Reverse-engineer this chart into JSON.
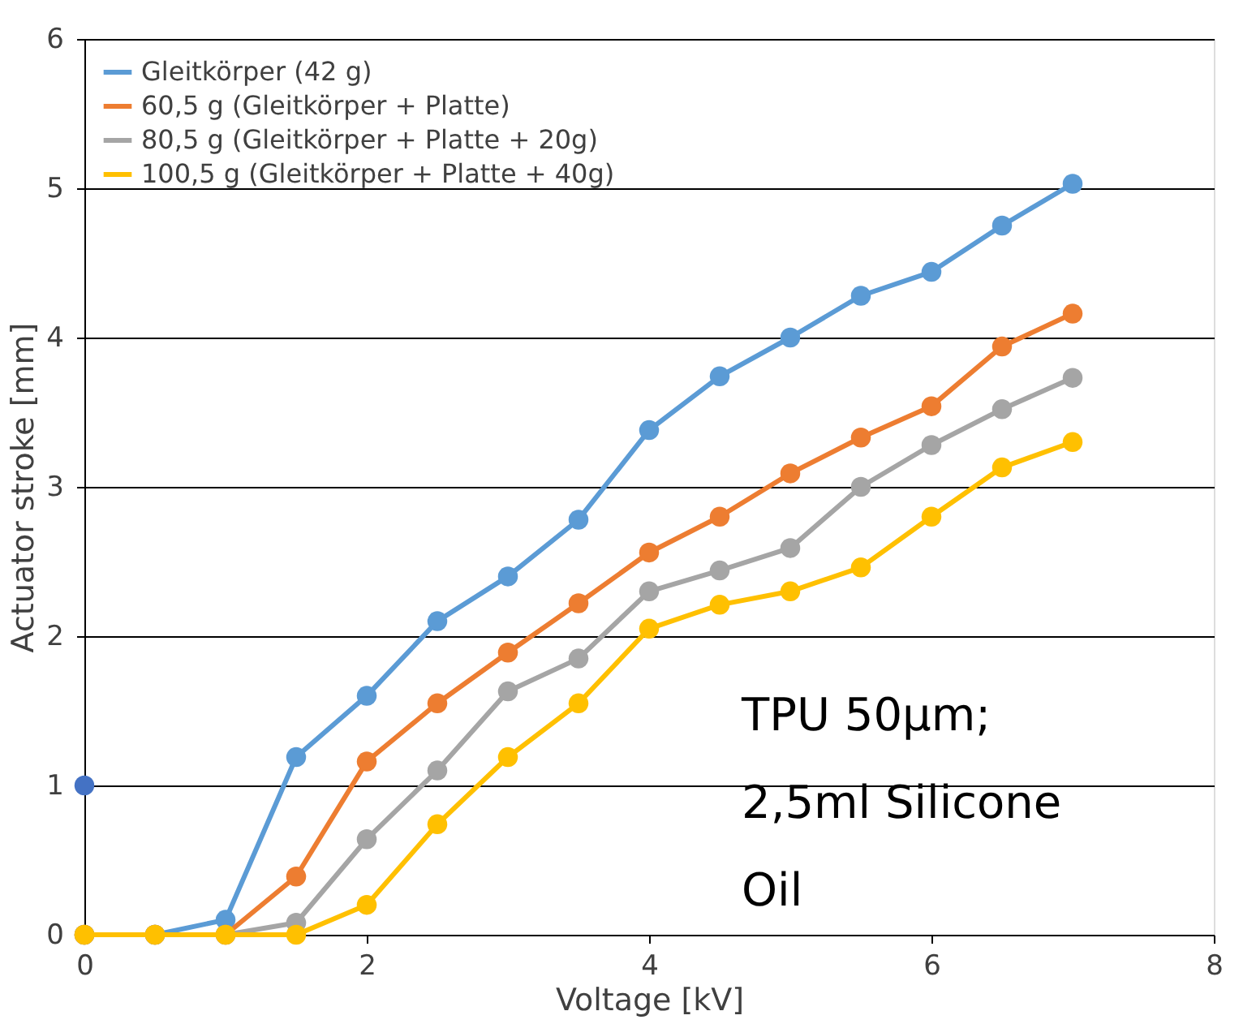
{
  "chart_data": {
    "type": "line",
    "xlabel": "Voltage [kV]",
    "ylabel": "Actuator stroke [mm]",
    "x": [
      0,
      0.5,
      1,
      1.5,
      2,
      2.5,
      3,
      3.5,
      4,
      4.5,
      5,
      5.5,
      6,
      6.5,
      7
    ],
    "series": [
      {
        "name": "Gleitkörper (42 g)",
        "color": "#5b9bd5",
        "values": [
          0,
          0,
          0.1,
          1.19,
          1.6,
          2.1,
          2.4,
          2.78,
          3.38,
          3.74,
          4.0,
          4.28,
          4.44,
          4.75,
          5.03
        ]
      },
      {
        "name": "60,5 g (Gleitkörper + Platte)",
        "color": "#ed7d31",
        "values": [
          0,
          0,
          0,
          0.39,
          1.16,
          1.55,
          1.89,
          2.22,
          2.56,
          2.8,
          3.09,
          3.33,
          3.54,
          3.94,
          4.16
        ]
      },
      {
        "name": "80,5 g (Gleitkörper + Platte + 20g)",
        "color": "#a5a5a5",
        "values": [
          0,
          0,
          0,
          0.08,
          0.64,
          1.1,
          1.63,
          1.85,
          2.3,
          2.44,
          2.59,
          3.0,
          3.28,
          3.52,
          3.73
        ]
      },
      {
        "name": "100,5 g (Gleitkörper + Platte + 40g)",
        "color": "#ffc000",
        "values": [
          0,
          0,
          0,
          0,
          0.2,
          0.74,
          1.19,
          1.55,
          2.05,
          2.21,
          2.3,
          2.46,
          2.8,
          3.13,
          3.3
        ]
      },
      {
        "type": "scatter",
        "color": "#4472c4",
        "x": [
          0
        ],
        "values": [
          1
        ]
      }
    ],
    "xlim": [
      0,
      8
    ],
    "xticks": [
      0,
      2,
      4,
      6,
      8
    ],
    "ylim": [
      0,
      6
    ],
    "yticks": [
      0,
      1,
      2,
      3,
      4,
      5,
      6
    ],
    "grid": "y",
    "legend": "top left",
    "marker": "circle",
    "line_style": "solid",
    "annotations": [
      "TPU 50µm;\n2,5ml Silicone\nOil"
    ]
  }
}
